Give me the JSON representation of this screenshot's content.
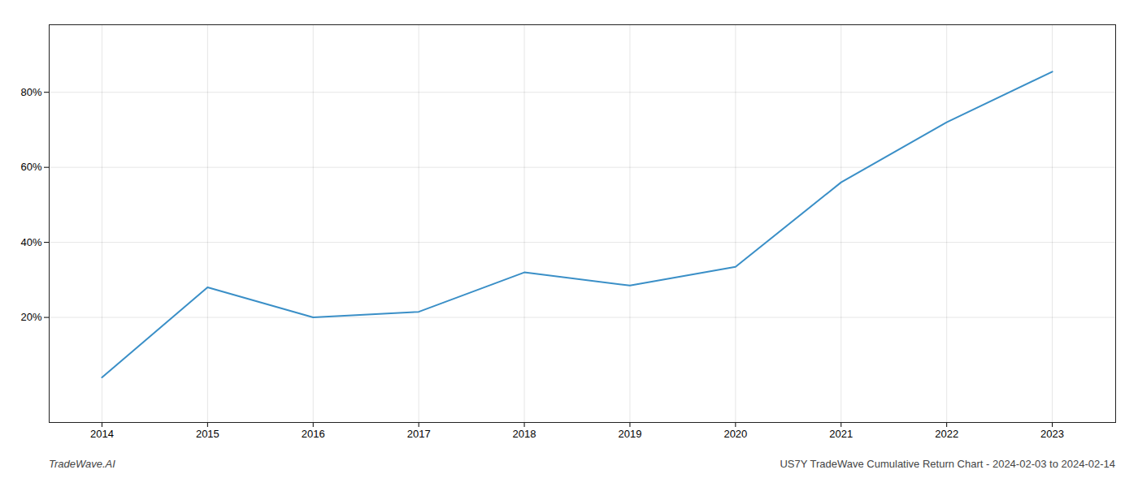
{
  "chart_data": {
    "type": "line",
    "x": [
      2014,
      2015,
      2016,
      2017,
      2018,
      2019,
      2020,
      2021,
      2022,
      2023
    ],
    "values": [
      4.0,
      28.0,
      20.0,
      21.5,
      32.0,
      28.5,
      33.5,
      56.0,
      72.0,
      85.5
    ],
    "color": "#3a8fc7",
    "xlim": [
      2013.5,
      2023.6
    ],
    "xticks": [
      2014,
      2015,
      2016,
      2017,
      2018,
      2019,
      2020,
      2021,
      2022,
      2023
    ],
    "ylim": [
      -8,
      98
    ],
    "yticks": [
      {
        "value": 20,
        "label": "20%"
      },
      {
        "value": 40,
        "label": "40%"
      },
      {
        "value": 60,
        "label": "60%"
      },
      {
        "value": 80,
        "label": "80%"
      }
    ],
    "grid": true,
    "annotations": [
      "TradeWave.AI",
      "US7Y TradeWave Cumulative Return Chart - 2024-02-03 to 2024-02-14"
    ]
  }
}
